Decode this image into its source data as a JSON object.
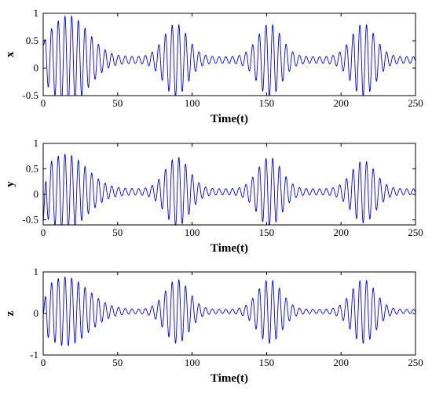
{
  "chart_data": [
    {
      "type": "line",
      "ylabel": "x",
      "xlabel": "Time(t)",
      "xlim": [
        0,
        250
      ],
      "ylim": [
        -0.5,
        1
      ],
      "xticks": [
        0,
        50,
        100,
        150,
        200,
        250
      ],
      "yticks": [
        -0.5,
        0,
        0.5,
        1
      ],
      "xtick_labels": [
        "0",
        "50",
        "100",
        "150",
        "200",
        "250"
      ],
      "ytick_labels": [
        "-0.5",
        "0",
        "0.5",
        "1"
      ],
      "grid": false,
      "line_color": "#0000ff",
      "waveform": {
        "carrier_period": 4.5,
        "offset": 0.15,
        "min_amplitude": 0.06,
        "bursts": [
          {
            "center": 17,
            "amplitude": 0.75,
            "width": 13
          },
          {
            "center": 89,
            "amplitude": 0.6,
            "width": 8
          },
          {
            "center": 152,
            "amplitude": 0.6,
            "width": 8
          },
          {
            "center": 215,
            "amplitude": 0.6,
            "width": 8
          }
        ],
        "start": {
          "y0": 0.45
        }
      }
    },
    {
      "type": "line",
      "ylabel": "y",
      "xlabel": "Time(t)",
      "xlim": [
        0,
        250
      ],
      "ylim": [
        -0.6,
        1
      ],
      "xticks": [
        0,
        50,
        100,
        150,
        200,
        250
      ],
      "yticks": [
        -0.5,
        0,
        0.5,
        1
      ],
      "xtick_labels": [
        "0",
        "50",
        "100",
        "150",
        "200",
        "250"
      ],
      "ytick_labels": [
        "-0.5",
        "0",
        "0.5",
        "1"
      ],
      "grid": false,
      "line_color": "#0000ff",
      "waveform": {
        "carrier_period": 4.5,
        "offset": 0.05,
        "min_amplitude": 0.06,
        "bursts": [
          {
            "center": 15,
            "amplitude": 0.68,
            "width": 14
          },
          {
            "center": 90,
            "amplitude": 0.62,
            "width": 8
          },
          {
            "center": 152,
            "amplitude": 0.62,
            "width": 8
          },
          {
            "center": 215,
            "amplitude": 0.55,
            "width": 8
          }
        ],
        "start": {
          "y0": -0.55
        }
      }
    },
    {
      "type": "line",
      "ylabel": "z",
      "xlabel": "Time(t)",
      "xlim": [
        0,
        250
      ],
      "ylim": [
        -1,
        1
      ],
      "xticks": [
        0,
        50,
        100,
        150,
        200,
        250
      ],
      "yticks": [
        -1,
        0,
        1
      ],
      "xtick_labels": [
        "0",
        "50",
        "100",
        "150",
        "200",
        "250"
      ],
      "ytick_labels": [
        "-1",
        "0",
        "1"
      ],
      "grid": false,
      "line_color": "#0000ff",
      "waveform": {
        "carrier_period": 4.5,
        "offset": 0.05,
        "min_amplitude": 0.05,
        "bursts": [
          {
            "center": 15,
            "amplitude": 0.78,
            "width": 15
          },
          {
            "center": 90,
            "amplitude": 0.72,
            "width": 8
          },
          {
            "center": 152,
            "amplitude": 0.72,
            "width": 8
          },
          {
            "center": 215,
            "amplitude": 0.72,
            "width": 8
          }
        ],
        "start": {
          "y0": 0.0
        }
      }
    }
  ]
}
